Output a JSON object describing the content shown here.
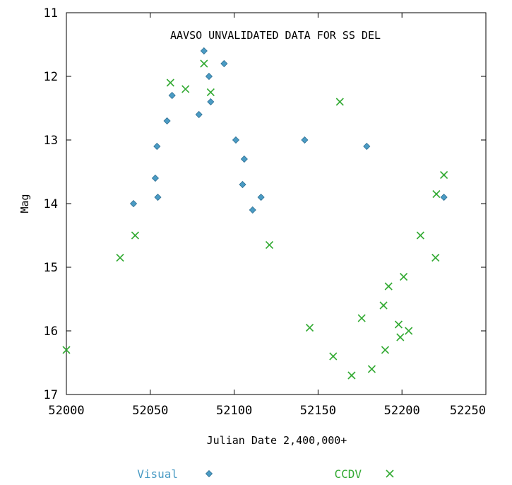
{
  "chart_data": {
    "type": "scatter",
    "title": "AAVSO UNVALIDATED DATA FOR SS DEL",
    "xlabel": "Julian Date 2,400,000+",
    "ylabel": "Mag",
    "xlim": [
      52000,
      52250
    ],
    "ylim": [
      11,
      17
    ],
    "y_inverted": true,
    "x_ticks": [
      52000,
      52050,
      52100,
      52150,
      52200,
      52250
    ],
    "y_ticks": [
      11,
      12,
      13,
      14,
      15,
      16,
      17
    ],
    "grid": false,
    "legend": "bottom",
    "series": [
      {
        "name": "Visual",
        "marker": "diamond",
        "color": "#4a9bc4",
        "points": [
          [
            52040,
            14.0
          ],
          [
            52053,
            13.6
          ],
          [
            52054,
            13.1
          ],
          [
            52054.5,
            13.9
          ],
          [
            52060,
            12.7
          ],
          [
            52063,
            12.3
          ],
          [
            52079,
            12.6
          ],
          [
            52082,
            11.6
          ],
          [
            52085,
            12.0
          ],
          [
            52086,
            12.4
          ],
          [
            52094,
            11.8
          ],
          [
            52101,
            13.0
          ],
          [
            52105,
            13.7
          ],
          [
            52106,
            13.3
          ],
          [
            52111,
            14.1
          ],
          [
            52116,
            13.9
          ],
          [
            52142,
            13.0
          ],
          [
            52179,
            13.1
          ],
          [
            52225,
            13.9
          ]
        ]
      },
      {
        "name": "CCDV",
        "marker": "x",
        "color": "#33aa33",
        "points": [
          [
            52000,
            16.3
          ],
          [
            52032,
            14.85
          ],
          [
            52041,
            14.5
          ],
          [
            52062,
            12.1
          ],
          [
            52071,
            12.2
          ],
          [
            52082,
            11.8
          ],
          [
            52086,
            12.25
          ],
          [
            52121,
            14.65
          ],
          [
            52145,
            15.95
          ],
          [
            52159,
            16.4
          ],
          [
            52163,
            12.4
          ],
          [
            52170,
            16.7
          ],
          [
            52176,
            15.8
          ],
          [
            52182,
            16.6
          ],
          [
            52189,
            15.6
          ],
          [
            52190,
            16.3
          ],
          [
            52192,
            15.3
          ],
          [
            52198,
            15.9
          ],
          [
            52199,
            16.1
          ],
          [
            52201,
            15.15
          ],
          [
            52204,
            16.0
          ],
          [
            52211,
            14.5
          ],
          [
            52220,
            14.85
          ],
          [
            52220.5,
            13.85
          ],
          [
            52225,
            13.55
          ]
        ]
      }
    ]
  }
}
